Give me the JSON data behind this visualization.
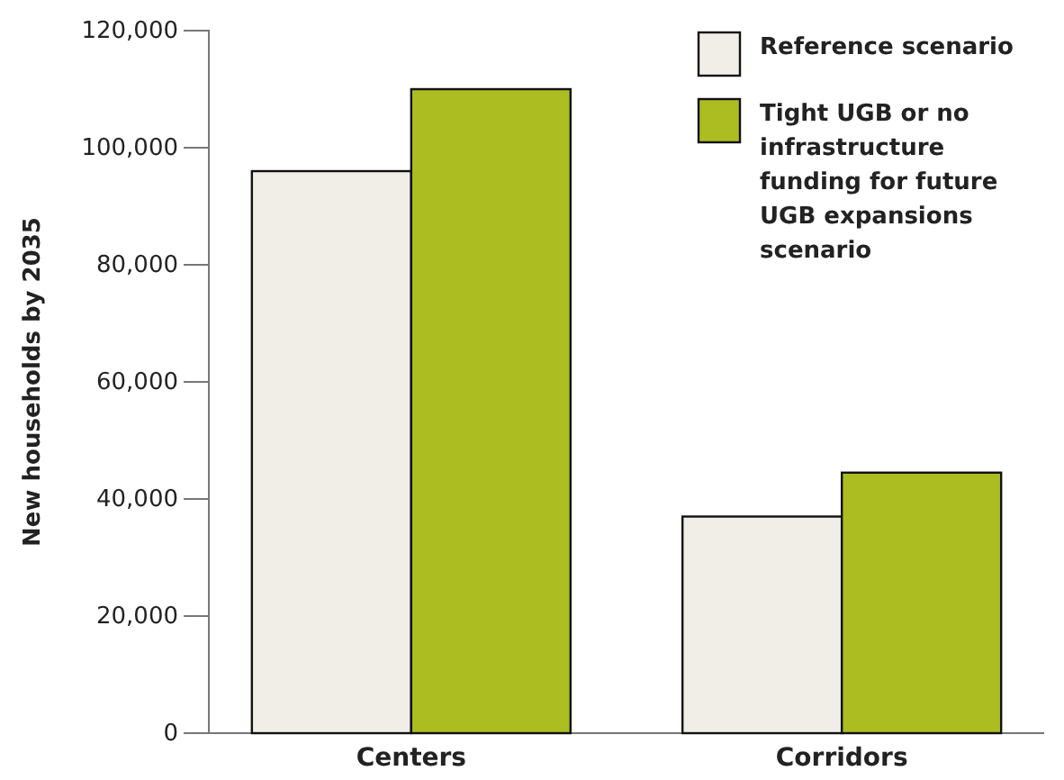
{
  "chart_data": {
    "type": "bar",
    "ylabel": "New households by 2035",
    "categories": [
      "Centers",
      "Corridors"
    ],
    "series": [
      {
        "name": "Reference scenario",
        "color": "#f1eee8",
        "values": [
          96000,
          37000
        ]
      },
      {
        "name": "Tight UGB or no infrastructure funding for future UGB expansions scenario",
        "color": "#acbd21",
        "values": [
          110000,
          44500
        ]
      }
    ],
    "ylim": [
      0,
      120000
    ],
    "yticks": [
      {
        "value": 0,
        "label": "0"
      },
      {
        "value": 20000,
        "label": "20,000"
      },
      {
        "value": 40000,
        "label": "40,000"
      },
      {
        "value": 60000,
        "label": "60,000"
      },
      {
        "value": 80000,
        "label": "80,000"
      },
      {
        "value": 100000,
        "label": "100,000"
      },
      {
        "value": 120000,
        "label": "120,000"
      }
    ],
    "grid": false,
    "legend": "top right"
  }
}
